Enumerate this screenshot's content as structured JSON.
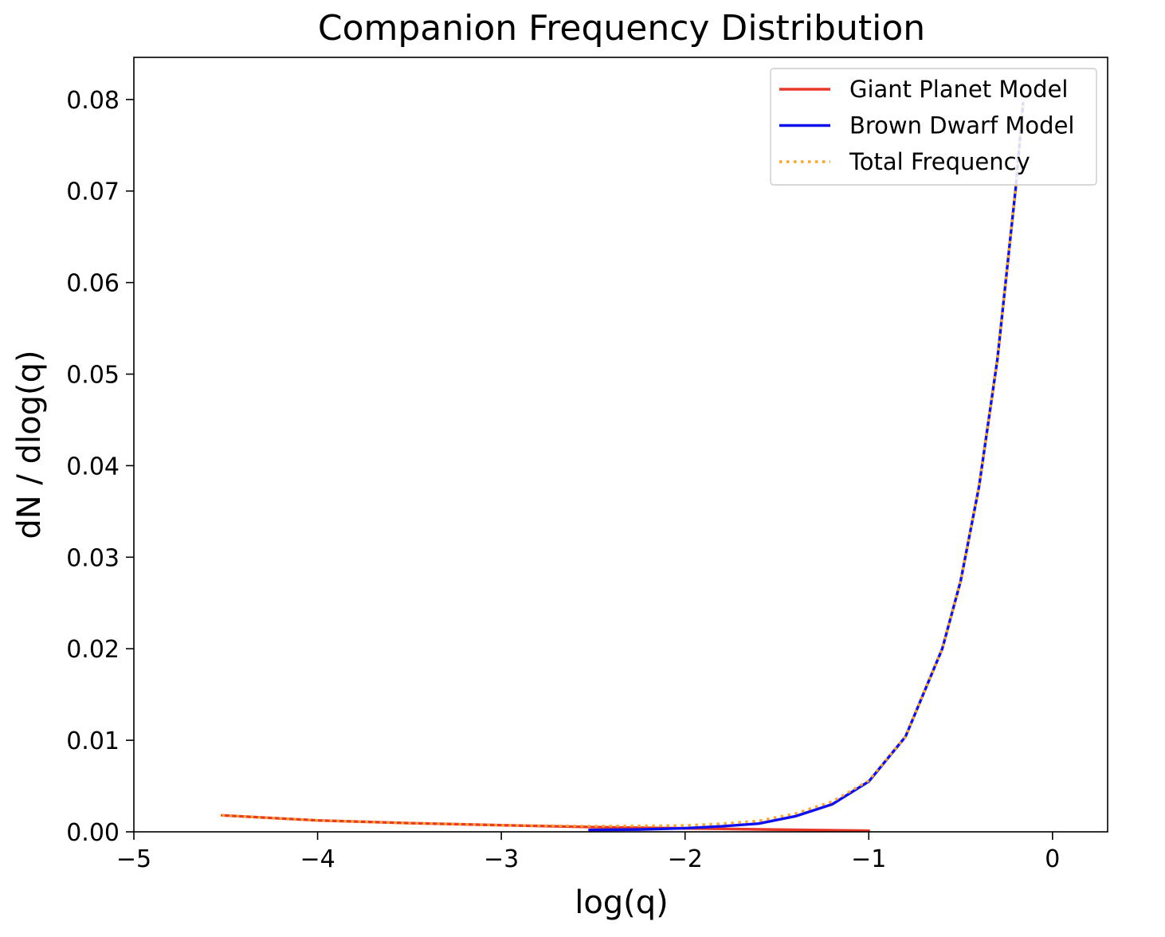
{
  "chart_data": {
    "type": "line",
    "title": "Companion Frequency Distribution",
    "xlabel": "log(q)",
    "ylabel": "dN / dlog(q)",
    "xlim": [
      -5.0,
      0.3
    ],
    "ylim": [
      0.0,
      0.0846
    ],
    "xticks": [
      -5,
      -4,
      -3,
      -2,
      -1,
      0
    ],
    "xtick_labels": [
      "−5",
      "−4",
      "−3",
      "−2",
      "−1",
      "0"
    ],
    "yticks": [
      0.0,
      0.01,
      0.02,
      0.03,
      0.04,
      0.05,
      0.06,
      0.07,
      0.08
    ],
    "ytick_labels": [
      "0.00",
      "0.01",
      "0.02",
      "0.03",
      "0.04",
      "0.05",
      "0.06",
      "0.07",
      "0.08"
    ],
    "grid": false,
    "legend_position": "top-right",
    "series": [
      {
        "name": "Giant Planet Model",
        "color": "#e8392a",
        "style": "solid",
        "x": [
          -4.52,
          -4.0,
          -3.5,
          -3.0,
          -2.5,
          -2.0,
          -1.5,
          -1.0
        ],
        "y": [
          0.0018,
          0.00125,
          0.00095,
          0.00072,
          0.00052,
          0.00038,
          0.00024,
          0.00012
        ]
      },
      {
        "name": "Brown Dwarf Model",
        "color": "#1010ee",
        "style": "solid",
        "x": [
          -2.52,
          -2.25,
          -2.0,
          -1.8,
          -1.6,
          -1.4,
          -1.2,
          -1.0,
          -0.8,
          -0.6,
          -0.5,
          -0.4,
          -0.3,
          -0.2,
          -0.16
        ],
        "y": [
          0.0002,
          0.00025,
          0.0004,
          0.0006,
          0.0009,
          0.0017,
          0.003,
          0.0055,
          0.0104,
          0.02,
          0.0274,
          0.0377,
          0.0516,
          0.0704,
          0.0796
        ]
      },
      {
        "name": "Total Frequency",
        "color": "#ffa629",
        "style": "dotted",
        "x": [
          -4.52,
          -4.0,
          -3.5,
          -3.0,
          -2.5,
          -2.0,
          -1.8,
          -1.6,
          -1.4,
          -1.2,
          -1.0,
          -0.8,
          -0.6,
          -0.5,
          -0.4,
          -0.3,
          -0.2,
          -0.16
        ],
        "y": [
          0.0018,
          0.00125,
          0.00095,
          0.00072,
          0.00062,
          0.0007,
          0.0009,
          0.0012,
          0.002,
          0.0033,
          0.0056,
          0.0104,
          0.02,
          0.0274,
          0.0377,
          0.0516,
          0.0704,
          0.0796
        ]
      }
    ]
  }
}
